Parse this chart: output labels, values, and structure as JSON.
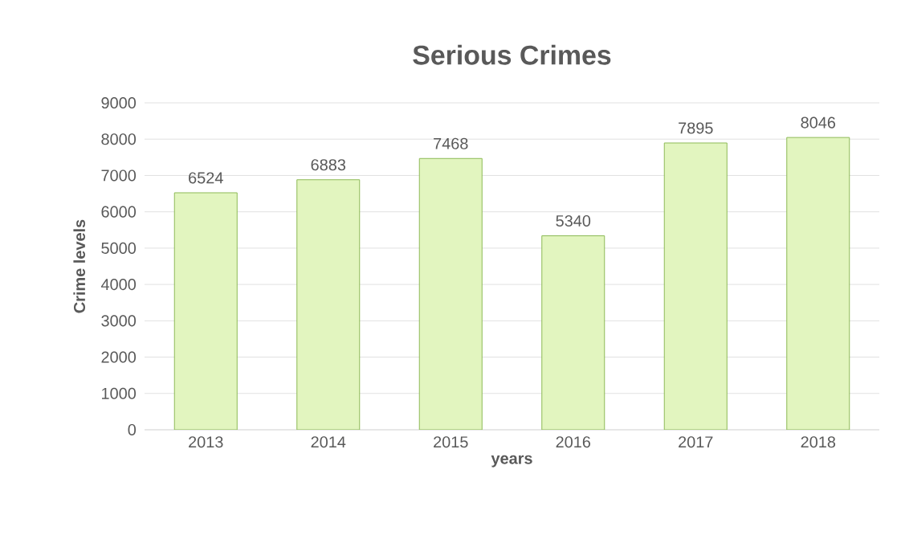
{
  "chart_data": {
    "type": "bar",
    "title": "Serious Crimes",
    "xlabel": "years",
    "ylabel": "Crime levels",
    "categories": [
      "2013",
      "2014",
      "2015",
      "2016",
      "2017",
      "2018"
    ],
    "values": [
      6524,
      6883,
      7468,
      5340,
      7895,
      8046
    ],
    "color": "#e2f5bf",
    "ylim": [
      0,
      9000
    ],
    "yticks": [
      0,
      1000,
      2000,
      3000,
      4000,
      5000,
      6000,
      7000,
      8000,
      9000
    ],
    "grid": "y",
    "data_labels": true
  }
}
